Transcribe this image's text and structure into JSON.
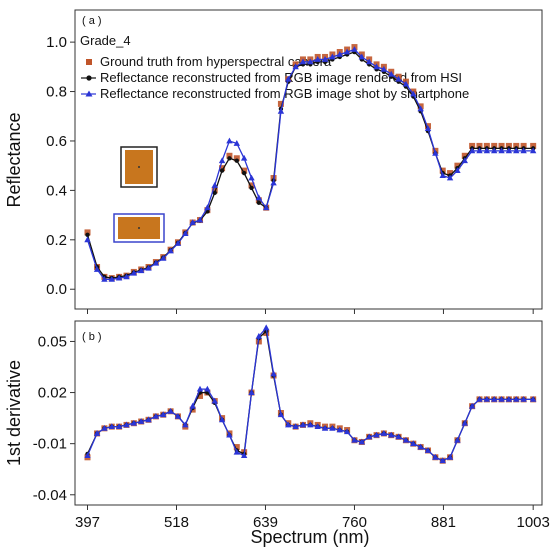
{
  "colors": {
    "ground_truth": "#c0552a",
    "rgb_hsi": "#111111",
    "smartphone": "#2b35d6",
    "thumb_fill": "#c8761e",
    "thumb_frame_black": "#222222",
    "thumb_frame_blue": "#3a44cc"
  },
  "chart_data": [
    {
      "type": "line",
      "panel_label": "( a )",
      "annotation": "Grade_4",
      "xlabel": "",
      "ylabel": "Reflectance",
      "xlim": [
        380,
        1015
      ],
      "ylim": [
        -0.08,
        1.13
      ],
      "xticks": [
        397,
        518,
        639,
        760,
        881,
        1003
      ],
      "yticks": [
        0.0,
        0.2,
        0.4,
        0.6,
        0.8,
        1.0
      ],
      "ytick_labels": [
        "0.0",
        "0.2",
        "0.4",
        "0.6",
        "0.8",
        "1.0"
      ],
      "legend_location": "top-left",
      "x": [
        397,
        410,
        420,
        430,
        440,
        450,
        460,
        470,
        480,
        490,
        500,
        510,
        520,
        530,
        540,
        550,
        560,
        570,
        580,
        590,
        600,
        610,
        620,
        630,
        640,
        650,
        660,
        670,
        680,
        690,
        700,
        710,
        720,
        730,
        740,
        750,
        760,
        770,
        780,
        790,
        800,
        810,
        820,
        830,
        840,
        850,
        860,
        870,
        880,
        890,
        900,
        910,
        920,
        930,
        940,
        950,
        960,
        970,
        980,
        990,
        1003
      ],
      "series": [
        {
          "name": "Ground truth from hyperspectral camera",
          "color_key": "ground_truth",
          "marker": "square",
          "values": [
            0.23,
            0.09,
            0.05,
            0.045,
            0.05,
            0.055,
            0.07,
            0.08,
            0.09,
            0.11,
            0.13,
            0.16,
            0.19,
            0.23,
            0.27,
            0.28,
            0.32,
            0.4,
            0.49,
            0.54,
            0.53,
            0.48,
            0.42,
            0.36,
            0.33,
            0.45,
            0.75,
            0.85,
            0.91,
            0.93,
            0.93,
            0.94,
            0.94,
            0.95,
            0.96,
            0.97,
            0.98,
            0.95,
            0.93,
            0.91,
            0.9,
            0.88,
            0.86,
            0.84,
            0.8,
            0.74,
            0.66,
            0.56,
            0.48,
            0.47,
            0.5,
            0.54,
            0.58,
            0.58,
            0.58,
            0.58,
            0.58,
            0.58,
            0.58,
            0.58,
            0.58
          ]
        },
        {
          "name": "Reflectance reconstructed from RGB image rendered from HSI",
          "color_key": "rgb_hsi",
          "marker": "circle",
          "values": [
            0.22,
            0.09,
            0.05,
            0.045,
            0.05,
            0.055,
            0.068,
            0.078,
            0.088,
            0.108,
            0.128,
            0.158,
            0.188,
            0.228,
            0.268,
            0.278,
            0.315,
            0.39,
            0.48,
            0.53,
            0.52,
            0.47,
            0.41,
            0.35,
            0.33,
            0.44,
            0.73,
            0.84,
            0.9,
            0.91,
            0.91,
            0.92,
            0.92,
            0.93,
            0.94,
            0.95,
            0.96,
            0.93,
            0.91,
            0.89,
            0.88,
            0.86,
            0.84,
            0.82,
            0.78,
            0.72,
            0.64,
            0.55,
            0.47,
            0.46,
            0.49,
            0.53,
            0.57,
            0.57,
            0.57,
            0.57,
            0.57,
            0.57,
            0.57,
            0.57,
            0.57
          ]
        },
        {
          "name": "Reflectance reconstructed from RGB image shot by smartphone",
          "color_key": "smartphone",
          "marker": "triangle",
          "values": [
            0.2,
            0.08,
            0.04,
            0.04,
            0.045,
            0.05,
            0.065,
            0.075,
            0.085,
            0.105,
            0.125,
            0.155,
            0.185,
            0.225,
            0.27,
            0.28,
            0.33,
            0.42,
            0.52,
            0.6,
            0.59,
            0.53,
            0.45,
            0.37,
            0.33,
            0.43,
            0.72,
            0.85,
            0.9,
            0.92,
            0.92,
            0.93,
            0.93,
            0.94,
            0.95,
            0.96,
            0.97,
            0.94,
            0.92,
            0.9,
            0.89,
            0.87,
            0.85,
            0.83,
            0.79,
            0.73,
            0.65,
            0.55,
            0.46,
            0.45,
            0.48,
            0.52,
            0.56,
            0.56,
            0.56,
            0.56,
            0.56,
            0.56,
            0.56,
            0.56,
            0.56
          ]
        }
      ]
    },
    {
      "type": "line",
      "panel_label": "( b )",
      "xlabel": "Spectrum (nm)",
      "ylabel": "1st derivative",
      "xlim": [
        380,
        1015
      ],
      "ylim": [
        -0.046,
        0.062
      ],
      "xticks": [
        397,
        518,
        639,
        760,
        881,
        1003
      ],
      "yticks": [
        -0.04,
        -0.01,
        0.02,
        0.05
      ],
      "ytick_labels": [
        "-0.04",
        "-0.01",
        "0.02",
        "0.05"
      ],
      "x": [
        397,
        410,
        420,
        430,
        440,
        450,
        460,
        470,
        480,
        490,
        500,
        510,
        520,
        530,
        540,
        550,
        560,
        570,
        580,
        590,
        600,
        610,
        620,
        630,
        640,
        650,
        660,
        670,
        680,
        690,
        700,
        710,
        720,
        730,
        740,
        750,
        760,
        770,
        780,
        790,
        800,
        810,
        820,
        830,
        840,
        850,
        860,
        870,
        880,
        890,
        900,
        910,
        920,
        930,
        940,
        950,
        960,
        970,
        980,
        990,
        1003
      ],
      "series": [
        {
          "name": "Ground truth from hyperspectral camera",
          "color_key": "ground_truth",
          "marker": "square",
          "values": [
            -0.018,
            -0.004,
            -0.001,
            0.0,
            0.0,
            0.001,
            0.002,
            0.003,
            0.004,
            0.006,
            0.007,
            0.009,
            0.006,
            0.0,
            0.01,
            0.018,
            0.02,
            0.015,
            0.005,
            -0.004,
            -0.012,
            -0.015,
            0.02,
            0.05,
            0.055,
            0.03,
            0.008,
            0.002,
            0.0,
            0.001,
            0.002,
            0.001,
            0.0,
            0.0,
            -0.001,
            -0.002,
            -0.008,
            -0.009,
            -0.006,
            -0.005,
            -0.004,
            -0.005,
            -0.006,
            -0.008,
            -0.01,
            -0.012,
            -0.014,
            -0.018,
            -0.02,
            -0.018,
            -0.008,
            0.002,
            0.012,
            0.016,
            0.016,
            0.016,
            0.016,
            0.016,
            0.016,
            0.016,
            0.016
          ]
        },
        {
          "name": "Reflectance reconstructed from RGB image rendered from HSI",
          "color_key": "rgb_hsi",
          "marker": "circle",
          "values": [
            -0.016,
            -0.004,
            -0.001,
            0.0,
            0.0,
            0.001,
            0.002,
            0.003,
            0.004,
            0.006,
            0.007,
            0.009,
            0.006,
            0.001,
            0.011,
            0.02,
            0.02,
            0.014,
            0.004,
            -0.005,
            -0.014,
            -0.016,
            0.02,
            0.052,
            0.056,
            0.03,
            0.007,
            0.001,
            0.0,
            0.001,
            0.001,
            0.0,
            -0.001,
            -0.001,
            -0.002,
            -0.003,
            -0.008,
            -0.009,
            -0.006,
            -0.005,
            -0.004,
            -0.005,
            -0.006,
            -0.008,
            -0.01,
            -0.012,
            -0.014,
            -0.018,
            -0.02,
            -0.018,
            -0.008,
            0.002,
            0.012,
            0.016,
            0.016,
            0.016,
            0.016,
            0.016,
            0.016,
            0.016,
            0.016
          ]
        },
        {
          "name": "Reflectance reconstructed from RGB image shot by smartphone",
          "color_key": "smartphone",
          "marker": "triangle",
          "values": [
            -0.017,
            -0.004,
            -0.001,
            0.0,
            0.0,
            0.001,
            0.002,
            0.003,
            0.004,
            0.006,
            0.007,
            0.009,
            0.006,
            0.001,
            0.012,
            0.022,
            0.022,
            0.015,
            0.004,
            -0.005,
            -0.015,
            -0.017,
            0.02,
            0.053,
            0.058,
            0.031,
            0.007,
            0.001,
            0.0,
            0.001,
            0.001,
            0.0,
            -0.001,
            -0.001,
            -0.002,
            -0.003,
            -0.008,
            -0.009,
            -0.006,
            -0.005,
            -0.004,
            -0.005,
            -0.006,
            -0.008,
            -0.01,
            -0.012,
            -0.014,
            -0.018,
            -0.02,
            -0.018,
            -0.008,
            0.002,
            0.012,
            0.016,
            0.016,
            0.016,
            0.016,
            0.016,
            0.016,
            0.016,
            0.016
          ]
        }
      ]
    }
  ]
}
